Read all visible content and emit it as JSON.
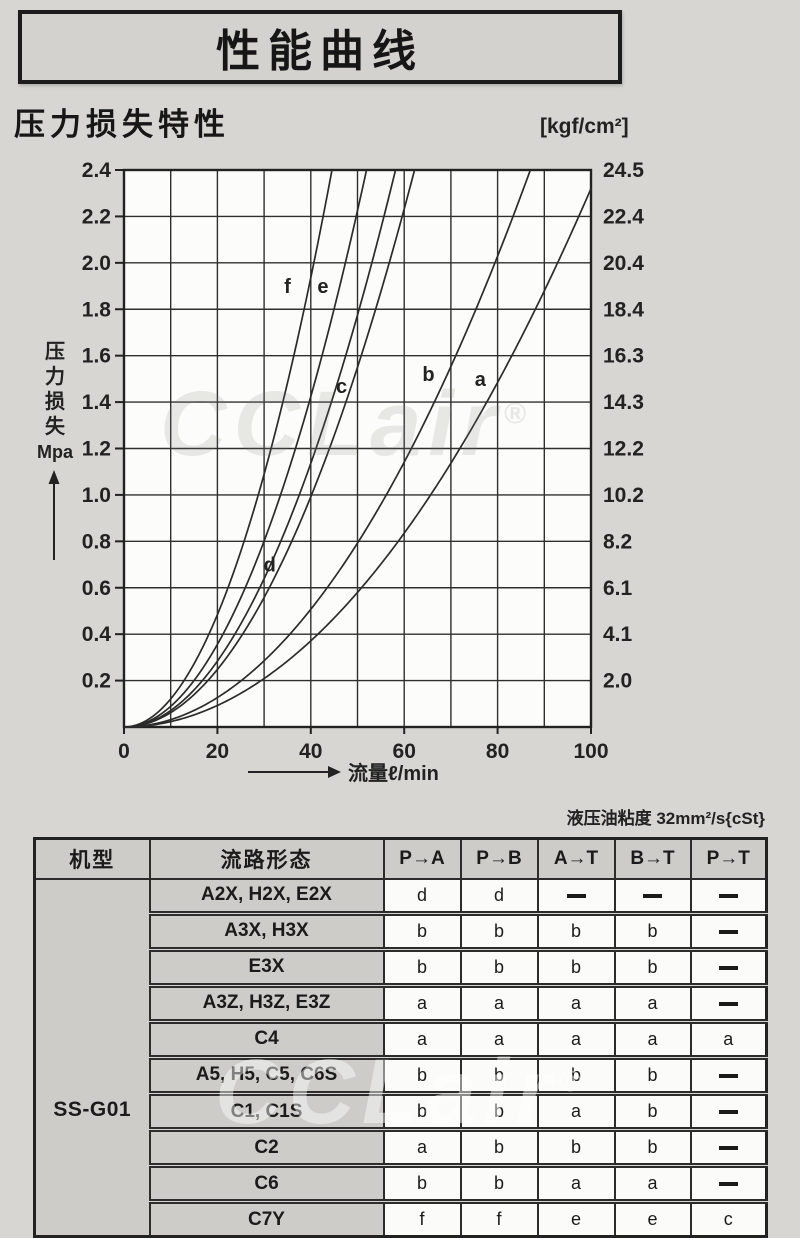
{
  "page": {
    "title": "性能曲线",
    "section_title": "压力损失特性"
  },
  "watermark": {
    "text": "CCLair",
    "reg_mark": "®"
  },
  "chart_data": {
    "type": "line",
    "title": "压力损失特性",
    "x_label": "流量ℓ/min",
    "y_left_label": "压力损失",
    "y_left_unit": "Mpa",
    "y_right_unit": "[kgf/cm²]",
    "x_range": [
      0,
      100
    ],
    "y_left_range": [
      0,
      2.4
    ],
    "y_right_range": [
      0,
      24.5
    ],
    "x_grid_step": 10,
    "y_grid_step": 0.2,
    "grid": "on",
    "legend_position": "labels-on-curves",
    "x_ticks": [
      "0",
      "20",
      "40",
      "60",
      "80",
      "100"
    ],
    "y_left_ticks": [
      "2.4",
      "2.2",
      "2.0",
      "1.8",
      "1.6",
      "1.4",
      "1.2",
      "1.0",
      "0.8",
      "0.6",
      "0.4",
      "0.2"
    ],
    "y_right_ticks": [
      "24.5",
      "22.4",
      "20.4",
      "18.4",
      "16.3",
      "14.3",
      "12.2",
      "10.2",
      "8.2",
      "6.1",
      "4.1",
      "2.0"
    ],
    "series": [
      {
        "name": "a",
        "k": 0.000232,
        "label_x": 76.3,
        "label_y": 1.5,
        "points": [
          [
            0,
            0
          ],
          [
            20,
            0.09
          ],
          [
            40,
            0.37
          ],
          [
            60,
            0.84
          ],
          [
            80,
            1.48
          ],
          [
            100,
            2.32
          ]
        ]
      },
      {
        "name": "b",
        "k": 0.000317,
        "label_x": 65.2,
        "label_y": 1.52,
        "points": [
          [
            0,
            0
          ],
          [
            20,
            0.13
          ],
          [
            40,
            0.51
          ],
          [
            60,
            1.14
          ],
          [
            80,
            2.03
          ],
          [
            87,
            2.4
          ]
        ]
      },
      {
        "name": "c",
        "k": 0.00062,
        "label_x": 46.6,
        "label_y": 1.47,
        "points": [
          [
            0,
            0
          ],
          [
            20,
            0.25
          ],
          [
            40,
            0.99
          ],
          [
            47,
            1.4
          ],
          [
            62,
            2.4
          ]
        ]
      },
      {
        "name": "d",
        "k": 0.00071,
        "label_x": 31.2,
        "label_y": 0.7,
        "points": [
          [
            0,
            0
          ],
          [
            20,
            0.28
          ],
          [
            29,
            0.6
          ],
          [
            40,
            1.14
          ],
          [
            58,
            2.4
          ]
        ]
      },
      {
        "name": "e",
        "k": 0.00089,
        "label_x": 42.6,
        "label_y": 1.9,
        "points": [
          [
            0,
            0
          ],
          [
            20,
            0.36
          ],
          [
            40,
            1.42
          ],
          [
            50,
            2.23
          ],
          [
            52,
            2.4
          ]
        ]
      },
      {
        "name": "f",
        "k": 0.00121,
        "label_x": 35.0,
        "label_y": 1.9,
        "points": [
          [
            0,
            0
          ],
          [
            20,
            0.48
          ],
          [
            30,
            1.09
          ],
          [
            40,
            1.94
          ],
          [
            44.5,
            2.4
          ]
        ]
      }
    ]
  },
  "table": {
    "note": "液压油粘度 32mm²/s{cSt}",
    "headers": [
      "机型",
      "流路形态",
      "P→A",
      "P→B",
      "A→T",
      "B→T",
      "P→T"
    ],
    "model": "SS-G01",
    "rows": [
      {
        "path": "A2X, H2X, E2X",
        "values": [
          "d",
          "d",
          "—",
          "—",
          "—"
        ]
      },
      {
        "path": "A3X, H3X",
        "values": [
          "b",
          "b",
          "b",
          "b",
          "—"
        ]
      },
      {
        "path": "E3X",
        "values": [
          "b",
          "b",
          "b",
          "b",
          "—"
        ]
      },
      {
        "path": "A3Z, H3Z, E3Z",
        "values": [
          "a",
          "a",
          "a",
          "a",
          "—"
        ]
      },
      {
        "path": "C4",
        "values": [
          "a",
          "a",
          "a",
          "a",
          "a"
        ]
      },
      {
        "path": "A5, H5, C5, C6S",
        "values": [
          "b",
          "b",
          "b",
          "b",
          "—"
        ]
      },
      {
        "path": "C1, C1S",
        "values": [
          "b",
          "b",
          "a",
          "b",
          "—"
        ]
      },
      {
        "path": "C2",
        "values": [
          "a",
          "b",
          "b",
          "b",
          "—"
        ]
      },
      {
        "path": "C6",
        "values": [
          "b",
          "b",
          "a",
          "a",
          "—"
        ]
      },
      {
        "path": "C7Y",
        "values": [
          "f",
          "f",
          "e",
          "e",
          "c"
        ]
      }
    ]
  }
}
